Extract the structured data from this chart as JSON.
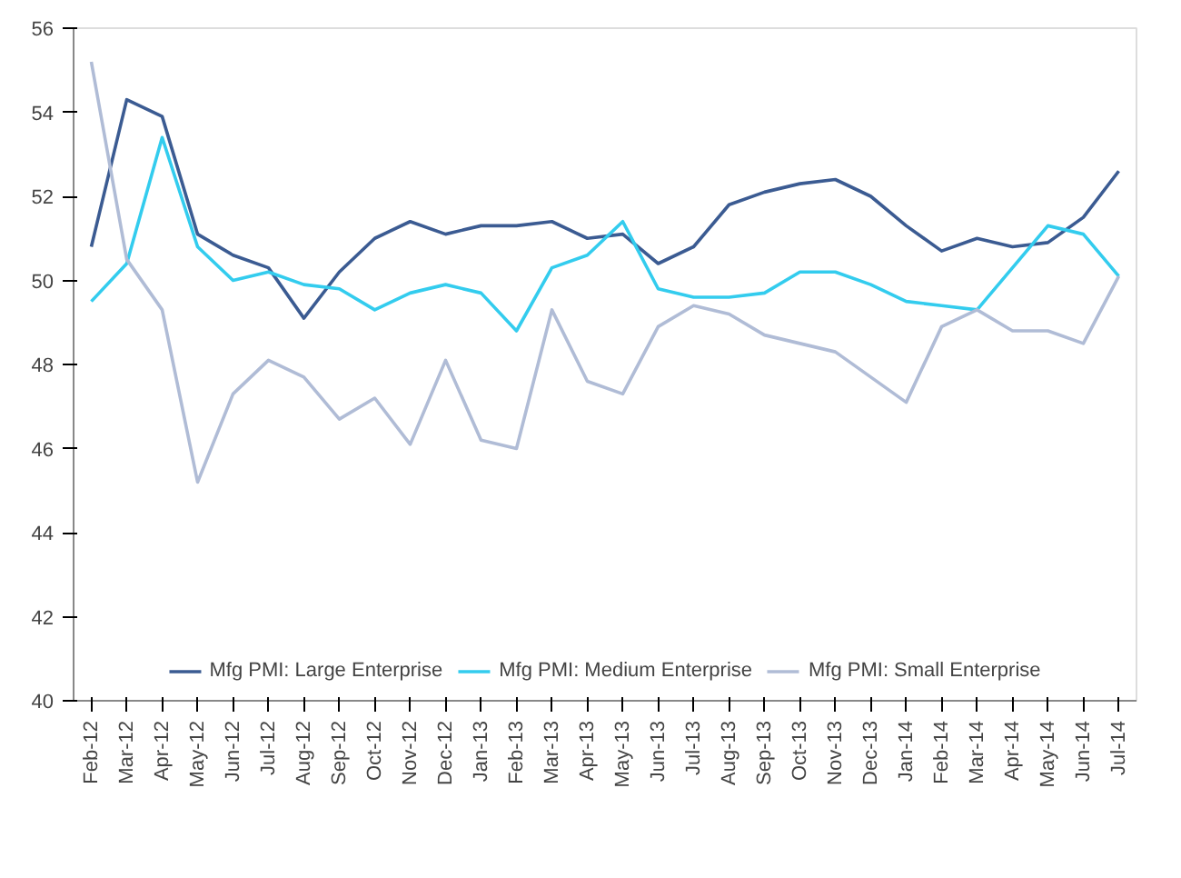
{
  "chart_data": {
    "type": "line",
    "categories": [
      "Feb-12",
      "Mar-12",
      "Apr-12",
      "May-12",
      "Jun-12",
      "Jul-12",
      "Aug-12",
      "Sep-12",
      "Oct-12",
      "Nov-12",
      "Dec-12",
      "Jan-13",
      "Feb-13",
      "Mar-13",
      "Apr-13",
      "May-13",
      "Jun-13",
      "Jul-13",
      "Aug-13",
      "Sep-13",
      "Oct-13",
      "Nov-13",
      "Dec-13",
      "Jan-14",
      "Feb-14",
      "Mar-14",
      "Apr-14",
      "May-14",
      "Jun-14",
      "Jul-14"
    ],
    "series": [
      {
        "name": "Mfg PMI: Large Enterprise",
        "color": "#3b5b92",
        "values": [
          50.8,
          54.3,
          53.9,
          51.1,
          50.6,
          50.3,
          49.1,
          50.2,
          51.0,
          51.4,
          51.1,
          51.3,
          51.3,
          51.4,
          51.0,
          51.1,
          50.4,
          50.8,
          51.8,
          52.1,
          52.3,
          52.4,
          52.0,
          51.3,
          50.7,
          51.0,
          50.8,
          50.9,
          51.5,
          52.6
        ]
      },
      {
        "name": "Mfg PMI: Medium Enterprise",
        "color": "#33ccee",
        "values": [
          49.5,
          50.4,
          53.4,
          50.8,
          50.0,
          50.2,
          49.9,
          49.8,
          49.3,
          49.7,
          49.9,
          49.7,
          48.8,
          50.3,
          50.6,
          51.4,
          49.8,
          49.6,
          49.6,
          49.7,
          50.2,
          50.2,
          49.9,
          49.5,
          49.4,
          49.3,
          50.3,
          51.3,
          51.1,
          50.1
        ]
      },
      {
        "name": "Mfg PMI: Small Enterprise",
        "color": "#b0bcd6",
        "values": [
          55.2,
          50.5,
          49.3,
          45.2,
          47.3,
          48.1,
          47.7,
          46.7,
          47.2,
          46.1,
          48.1,
          46.2,
          46.0,
          49.3,
          47.6,
          47.3,
          48.9,
          49.4,
          49.2,
          48.7,
          48.5,
          48.3,
          47.7,
          47.1,
          48.9,
          49.3,
          48.8,
          48.8,
          48.5,
          50.1
        ]
      }
    ],
    "ylim": [
      40,
      56
    ],
    "yticks": [
      40,
      42,
      44,
      46,
      48,
      50,
      52,
      54,
      56
    ],
    "grid": false,
    "legend": "bottom",
    "marker": "none",
    "line_style": "solid"
  }
}
